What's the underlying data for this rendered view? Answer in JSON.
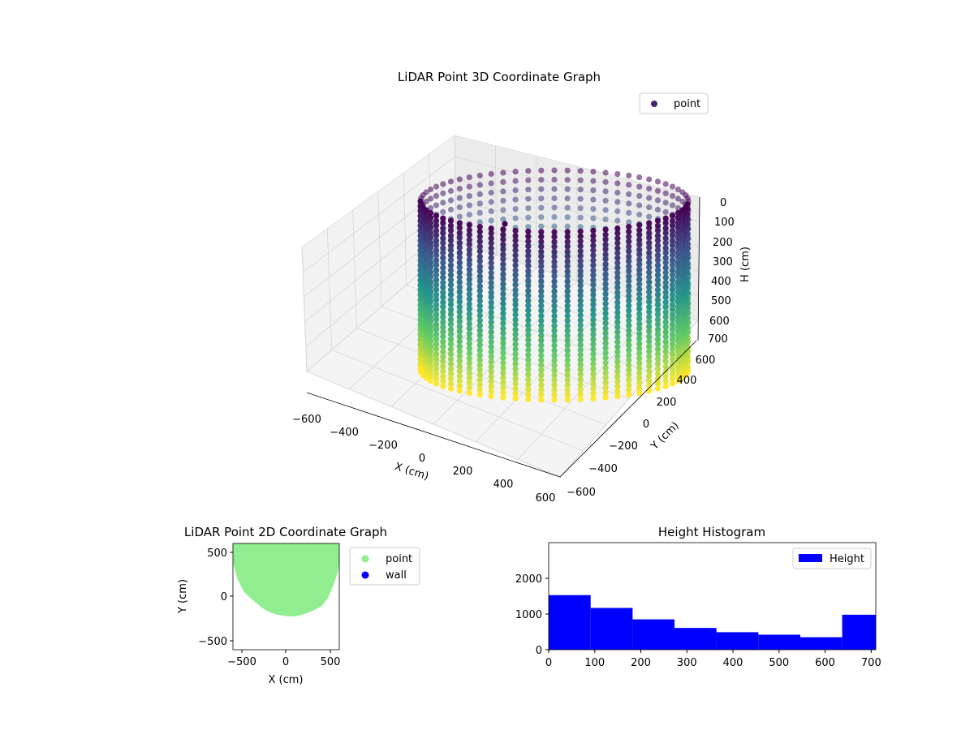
{
  "colors": {
    "viridis_low": "#440154",
    "viridis_mid": "#21918c",
    "viridis_high": "#fde725",
    "legend_point_3d": "#482173",
    "point_2d": "#90ee90",
    "wall_2d": "#0000ff",
    "histogram": "#0000ff",
    "pane": "#f2f2f2",
    "grid": "#cccccc"
  },
  "chart_data": [
    {
      "type": "scatter3d",
      "title": "LiDAR Point 3D Coordinate Graph",
      "xlabel": "X (cm)",
      "ylabel": "Y (cm)",
      "zlabel": "H (cm)",
      "xlim": [
        -600,
        600
      ],
      "ylim": [
        -600,
        600
      ],
      "zlim": [
        0,
        700
      ],
      "z_inverted": true,
      "x_ticks": [
        "−600",
        "−400",
        "−200",
        "0",
        "200",
        "400",
        "600"
      ],
      "y_ticks": [
        "−600",
        "−400",
        "−200",
        "0",
        "200",
        "400",
        "600"
      ],
      "z_ticks": [
        "0",
        "100",
        "200",
        "300",
        "400",
        "500",
        "600",
        "700"
      ],
      "legend": [
        {
          "label": "point",
          "color": "#482173"
        }
      ],
      "legend_position": "upper-right",
      "colormap": "viridis",
      "shape": "cylindrical wall of points, radius ≈ 600 cm, heights 0–700 cm",
      "grid": true
    },
    {
      "type": "scatter",
      "title": "LiDAR Point 2D Coordinate Graph",
      "xlabel": "X (cm)",
      "ylabel": "Y (cm)",
      "xlim": [
        -600,
        600
      ],
      "ylim": [
        -600,
        600
      ],
      "x_ticks": [
        "−500",
        "0",
        "500"
      ],
      "y_ticks": [
        "−500",
        "0",
        "500"
      ],
      "series": [
        {
          "name": "point",
          "color": "#90ee90"
        },
        {
          "name": "wall",
          "color": "#0000ff"
        }
      ],
      "boundary": [
        [
          -600,
          380
        ],
        [
          -550,
          200
        ],
        [
          -480,
          60
        ],
        [
          -420,
          0
        ],
        [
          -350,
          -60
        ],
        [
          -280,
          -120
        ],
        [
          -200,
          -170
        ],
        [
          -100,
          -205
        ],
        [
          0,
          -220
        ],
        [
          100,
          -225
        ],
        [
          200,
          -200
        ],
        [
          300,
          -160
        ],
        [
          400,
          -110
        ],
        [
          470,
          -20
        ],
        [
          530,
          120
        ],
        [
          580,
          260
        ],
        [
          600,
          380
        ]
      ],
      "legend_position": "outside-right"
    },
    {
      "type": "histogram",
      "title": "Height Histogram",
      "xlim": [
        0,
        710
      ],
      "ylim": [
        0,
        3000
      ],
      "x_ticks": [
        0,
        100,
        200,
        300,
        400,
        500,
        600,
        700
      ],
      "y_ticks": [
        0,
        1000,
        2000
      ],
      "bins": [
        0,
        91,
        182,
        273,
        364,
        455,
        546,
        637,
        710
      ],
      "counts": [
        1530,
        1170,
        850,
        610,
        490,
        420,
        350,
        980
      ],
      "series": [
        {
          "name": "Height",
          "color": "#0000ff"
        }
      ],
      "legend_position": "upper-right"
    }
  ]
}
